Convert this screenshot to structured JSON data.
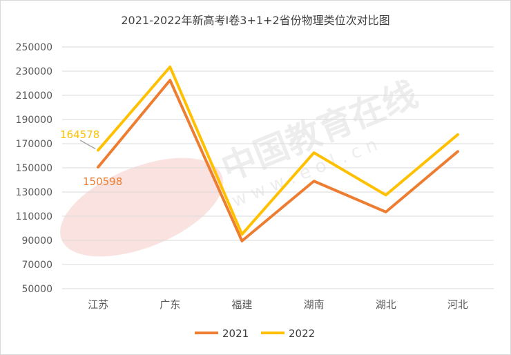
{
  "chart_data": {
    "type": "line",
    "title": "2021-2022年新高考Ⅰ卷3+1+2省份物理类位次对比图",
    "categories": [
      "江苏",
      "广东",
      "福建",
      "湖南",
      "湖北",
      "河北"
    ],
    "series": [
      {
        "name": "2021",
        "values": [
          150598,
          222500,
          89500,
          139000,
          113500,
          163500
        ],
        "color": "#ED7D31"
      },
      {
        "name": "2022",
        "values": [
          164578,
          233500,
          95000,
          162500,
          127500,
          177500
        ],
        "color": "#FFC000"
      }
    ],
    "ylim": [
      50000,
      250000
    ],
    "yticks": [
      50000,
      70000,
      90000,
      110000,
      130000,
      150000,
      170000,
      190000,
      210000,
      230000,
      250000
    ],
    "ytick_labels": [
      "50000",
      "70000",
      "90000",
      "110000",
      "130000",
      "150000",
      "170000",
      "190000",
      "210000",
      "230000",
      "250000"
    ],
    "data_labels": [
      {
        "series": "2022",
        "category": "江苏",
        "text": "164578"
      },
      {
        "series": "2021",
        "category": "江苏",
        "text": "150598"
      }
    ],
    "watermark": {
      "text": "中国教育在线",
      "subtext": "w w w . e o l . c n"
    },
    "grid": true,
    "legend_position": "bottom"
  }
}
